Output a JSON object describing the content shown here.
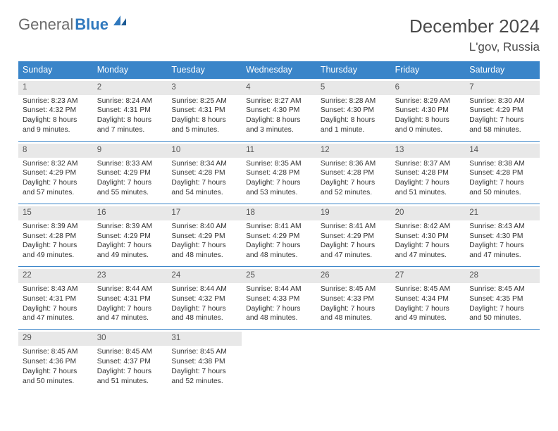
{
  "logo": {
    "part1": "General",
    "part2": "Blue"
  },
  "title": "December 2024",
  "location": "L'gov, Russia",
  "header_bg": "#3a85c9",
  "header_fg": "#ffffff",
  "daynum_bg": "#e8e8e8",
  "divider_color": "#3a85c9",
  "text_color": "#333333",
  "dows": [
    "Sunday",
    "Monday",
    "Tuesday",
    "Wednesday",
    "Thursday",
    "Friday",
    "Saturday"
  ],
  "weeks": [
    [
      {
        "n": "1",
        "sr": "Sunrise: 8:23 AM",
        "ss": "Sunset: 4:32 PM",
        "d1": "Daylight: 8 hours",
        "d2": "and 9 minutes."
      },
      {
        "n": "2",
        "sr": "Sunrise: 8:24 AM",
        "ss": "Sunset: 4:31 PM",
        "d1": "Daylight: 8 hours",
        "d2": "and 7 minutes."
      },
      {
        "n": "3",
        "sr": "Sunrise: 8:25 AM",
        "ss": "Sunset: 4:31 PM",
        "d1": "Daylight: 8 hours",
        "d2": "and 5 minutes."
      },
      {
        "n": "4",
        "sr": "Sunrise: 8:27 AM",
        "ss": "Sunset: 4:30 PM",
        "d1": "Daylight: 8 hours",
        "d2": "and 3 minutes."
      },
      {
        "n": "5",
        "sr": "Sunrise: 8:28 AM",
        "ss": "Sunset: 4:30 PM",
        "d1": "Daylight: 8 hours",
        "d2": "and 1 minute."
      },
      {
        "n": "6",
        "sr": "Sunrise: 8:29 AM",
        "ss": "Sunset: 4:30 PM",
        "d1": "Daylight: 8 hours",
        "d2": "and 0 minutes."
      },
      {
        "n": "7",
        "sr": "Sunrise: 8:30 AM",
        "ss": "Sunset: 4:29 PM",
        "d1": "Daylight: 7 hours",
        "d2": "and 58 minutes."
      }
    ],
    [
      {
        "n": "8",
        "sr": "Sunrise: 8:32 AM",
        "ss": "Sunset: 4:29 PM",
        "d1": "Daylight: 7 hours",
        "d2": "and 57 minutes."
      },
      {
        "n": "9",
        "sr": "Sunrise: 8:33 AM",
        "ss": "Sunset: 4:29 PM",
        "d1": "Daylight: 7 hours",
        "d2": "and 55 minutes."
      },
      {
        "n": "10",
        "sr": "Sunrise: 8:34 AM",
        "ss": "Sunset: 4:28 PM",
        "d1": "Daylight: 7 hours",
        "d2": "and 54 minutes."
      },
      {
        "n": "11",
        "sr": "Sunrise: 8:35 AM",
        "ss": "Sunset: 4:28 PM",
        "d1": "Daylight: 7 hours",
        "d2": "and 53 minutes."
      },
      {
        "n": "12",
        "sr": "Sunrise: 8:36 AM",
        "ss": "Sunset: 4:28 PM",
        "d1": "Daylight: 7 hours",
        "d2": "and 52 minutes."
      },
      {
        "n": "13",
        "sr": "Sunrise: 8:37 AM",
        "ss": "Sunset: 4:28 PM",
        "d1": "Daylight: 7 hours",
        "d2": "and 51 minutes."
      },
      {
        "n": "14",
        "sr": "Sunrise: 8:38 AM",
        "ss": "Sunset: 4:28 PM",
        "d1": "Daylight: 7 hours",
        "d2": "and 50 minutes."
      }
    ],
    [
      {
        "n": "15",
        "sr": "Sunrise: 8:39 AM",
        "ss": "Sunset: 4:28 PM",
        "d1": "Daylight: 7 hours",
        "d2": "and 49 minutes."
      },
      {
        "n": "16",
        "sr": "Sunrise: 8:39 AM",
        "ss": "Sunset: 4:29 PM",
        "d1": "Daylight: 7 hours",
        "d2": "and 49 minutes."
      },
      {
        "n": "17",
        "sr": "Sunrise: 8:40 AM",
        "ss": "Sunset: 4:29 PM",
        "d1": "Daylight: 7 hours",
        "d2": "and 48 minutes."
      },
      {
        "n": "18",
        "sr": "Sunrise: 8:41 AM",
        "ss": "Sunset: 4:29 PM",
        "d1": "Daylight: 7 hours",
        "d2": "and 48 minutes."
      },
      {
        "n": "19",
        "sr": "Sunrise: 8:41 AM",
        "ss": "Sunset: 4:29 PM",
        "d1": "Daylight: 7 hours",
        "d2": "and 47 minutes."
      },
      {
        "n": "20",
        "sr": "Sunrise: 8:42 AM",
        "ss": "Sunset: 4:30 PM",
        "d1": "Daylight: 7 hours",
        "d2": "and 47 minutes."
      },
      {
        "n": "21",
        "sr": "Sunrise: 8:43 AM",
        "ss": "Sunset: 4:30 PM",
        "d1": "Daylight: 7 hours",
        "d2": "and 47 minutes."
      }
    ],
    [
      {
        "n": "22",
        "sr": "Sunrise: 8:43 AM",
        "ss": "Sunset: 4:31 PM",
        "d1": "Daylight: 7 hours",
        "d2": "and 47 minutes."
      },
      {
        "n": "23",
        "sr": "Sunrise: 8:44 AM",
        "ss": "Sunset: 4:31 PM",
        "d1": "Daylight: 7 hours",
        "d2": "and 47 minutes."
      },
      {
        "n": "24",
        "sr": "Sunrise: 8:44 AM",
        "ss": "Sunset: 4:32 PM",
        "d1": "Daylight: 7 hours",
        "d2": "and 48 minutes."
      },
      {
        "n": "25",
        "sr": "Sunrise: 8:44 AM",
        "ss": "Sunset: 4:33 PM",
        "d1": "Daylight: 7 hours",
        "d2": "and 48 minutes."
      },
      {
        "n": "26",
        "sr": "Sunrise: 8:45 AM",
        "ss": "Sunset: 4:33 PM",
        "d1": "Daylight: 7 hours",
        "d2": "and 48 minutes."
      },
      {
        "n": "27",
        "sr": "Sunrise: 8:45 AM",
        "ss": "Sunset: 4:34 PM",
        "d1": "Daylight: 7 hours",
        "d2": "and 49 minutes."
      },
      {
        "n": "28",
        "sr": "Sunrise: 8:45 AM",
        "ss": "Sunset: 4:35 PM",
        "d1": "Daylight: 7 hours",
        "d2": "and 50 minutes."
      }
    ],
    [
      {
        "n": "29",
        "sr": "Sunrise: 8:45 AM",
        "ss": "Sunset: 4:36 PM",
        "d1": "Daylight: 7 hours",
        "d2": "and 50 minutes."
      },
      {
        "n": "30",
        "sr": "Sunrise: 8:45 AM",
        "ss": "Sunset: 4:37 PM",
        "d1": "Daylight: 7 hours",
        "d2": "and 51 minutes."
      },
      {
        "n": "31",
        "sr": "Sunrise: 8:45 AM",
        "ss": "Sunset: 4:38 PM",
        "d1": "Daylight: 7 hours",
        "d2": "and 52 minutes."
      },
      null,
      null,
      null,
      null
    ]
  ]
}
